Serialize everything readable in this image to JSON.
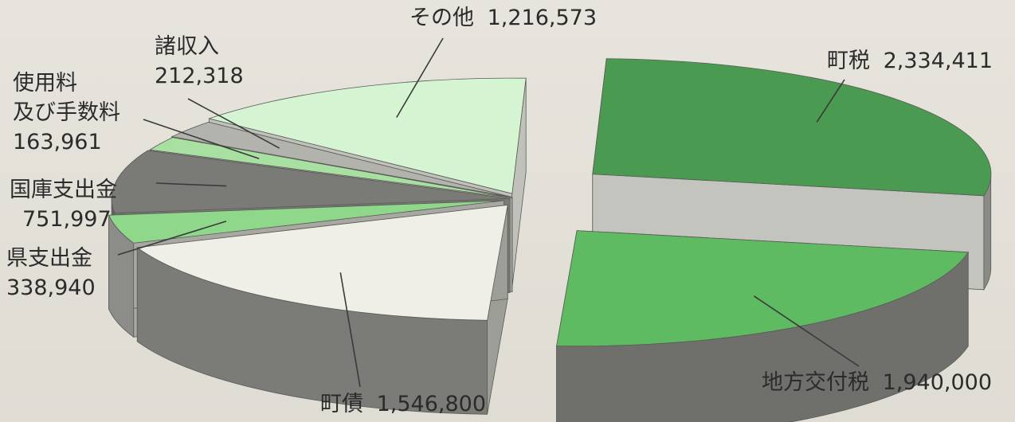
{
  "chart_data": {
    "type": "pie",
    "style": "3d-exploded",
    "slices": [
      {
        "label": "町税",
        "value": 2334411,
        "display_value": "2,334,411",
        "color": "#4a9a52"
      },
      {
        "label": "地方交付税",
        "value": 1940000,
        "display_value": "1,940,000",
        "color": "#5fbb62"
      },
      {
        "label": "町債",
        "value": 1546800,
        "display_value": "1,546,800",
        "color": "#efefe7"
      },
      {
        "label": "県支出金",
        "value": 338940,
        "display_value": "338,940",
        "color": "#8fd88b"
      },
      {
        "label": "国庫支出金",
        "value": 751997,
        "display_value": "751,997",
        "color": "#7a7a76"
      },
      {
        "label": "使用料及び手数料",
        "label_lines": [
          "使用料",
          "及び手数料"
        ],
        "value": 163961,
        "display_value": "163,961",
        "color": "#a8e0a2"
      },
      {
        "label": "諸収入",
        "value": 212318,
        "display_value": "212,318",
        "color": "#b3b3ad"
      },
      {
        "label": "その他",
        "value": 1216573,
        "display_value": "1,216,573",
        "color": "#d5f5d2"
      }
    ]
  }
}
